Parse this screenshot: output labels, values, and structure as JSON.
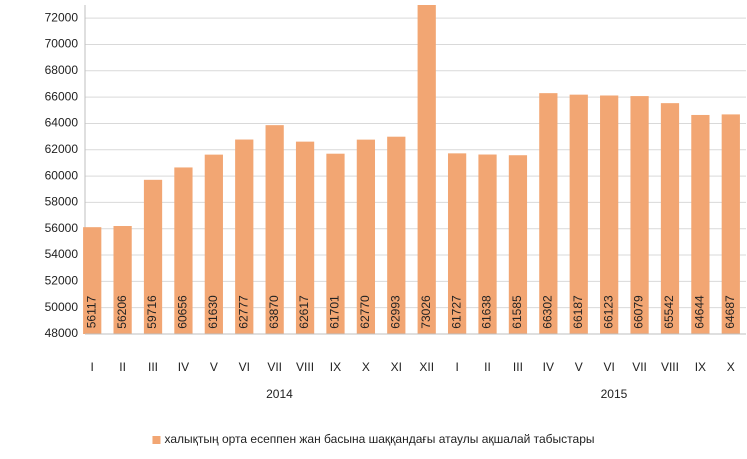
{
  "chart_data": {
    "type": "bar",
    "category_groups": [
      {
        "label": "2014",
        "categories": [
          "I",
          "II",
          "III",
          "IV",
          "V",
          "VI",
          "VII",
          "VIII",
          "IX",
          "X",
          "XI",
          "XII"
        ]
      },
      {
        "label": "2015",
        "categories": [
          "I",
          "II",
          "III",
          "IV",
          "V",
          "VI",
          "VII",
          "VIII",
          "IX",
          "X"
        ]
      }
    ],
    "series": [
      {
        "name": "халықтың орта есеппен жан басына шаққандағы атаулы ақшалай табыстары",
        "color": "#f2a673",
        "values": [
          56117,
          56206,
          59716,
          60656,
          61630,
          62777,
          63870,
          62617,
          61701,
          62770,
          62993,
          73026,
          61727,
          61638,
          61585,
          66302,
          66187,
          66123,
          66079,
          65542,
          64644,
          64687
        ]
      }
    ],
    "ylim": [
      48000,
      73000
    ],
    "yticks": [
      48000,
      50000,
      52000,
      54000,
      56000,
      58000,
      60000,
      62000,
      64000,
      66000,
      68000,
      70000,
      72000
    ],
    "grid": true,
    "legend": "bottom"
  }
}
